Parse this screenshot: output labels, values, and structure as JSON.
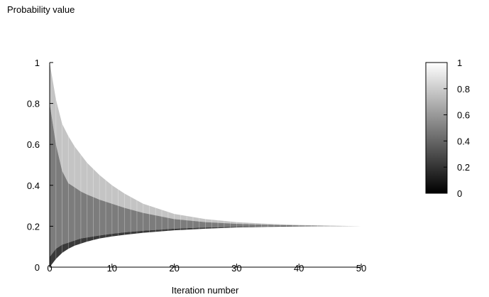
{
  "chart_data": {
    "type": "area",
    "title": "Probability value",
    "xlabel": "Iteration number",
    "ylabel": "",
    "xlim": [
      0,
      50
    ],
    "ylim": [
      0,
      1
    ],
    "x_ticks": [
      "0",
      "10",
      "20",
      "30",
      "40",
      "50"
    ],
    "y_ticks": [
      "0",
      "0.2",
      "0.4",
      "0.6",
      "0.8",
      "1"
    ],
    "grid": false,
    "colorbar": {
      "range": [
        0,
        1
      ],
      "ticks": [
        "0",
        "0.2",
        "0.4",
        "0.6",
        "0.8",
        "1"
      ],
      "colormap": "grayscale (0 = black, 1 = white)"
    },
    "x": [
      0,
      1,
      2,
      3,
      4,
      5,
      6,
      8,
      10,
      12,
      15,
      20,
      25,
      30,
      35,
      40,
      45,
      50
    ],
    "envelope": {
      "upper": [
        1.0,
        0.82,
        0.7,
        0.64,
        0.59,
        0.55,
        0.51,
        0.45,
        0.4,
        0.36,
        0.31,
        0.26,
        0.235,
        0.22,
        0.212,
        0.206,
        0.203,
        0.2
      ],
      "mid_upper": [
        0.8,
        0.6,
        0.47,
        0.41,
        0.39,
        0.37,
        0.355,
        0.33,
        0.31,
        0.29,
        0.265,
        0.235,
        0.22,
        0.212,
        0.207,
        0.204,
        0.202,
        0.2
      ],
      "mid_lower": [
        0.05,
        0.09,
        0.11,
        0.12,
        0.13,
        0.14,
        0.145,
        0.155,
        0.163,
        0.17,
        0.178,
        0.188,
        0.194,
        0.197,
        0.199,
        0.2,
        0.2,
        0.2
      ],
      "lower": [
        0.0,
        0.04,
        0.07,
        0.09,
        0.105,
        0.115,
        0.125,
        0.14,
        0.15,
        0.158,
        0.168,
        0.18,
        0.188,
        0.194,
        0.197,
        0.199,
        0.2,
        0.2
      ]
    },
    "converges_to": 0.2
  }
}
